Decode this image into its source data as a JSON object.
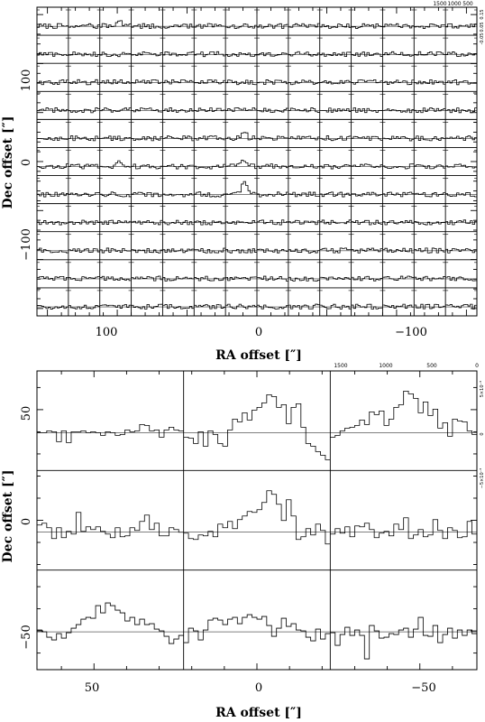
{
  "chart_data": [
    {
      "type": "line",
      "subtype": "spectral-map-grid",
      "title": "",
      "xlabel": "RA offset  [″]",
      "ylabel": "Dec offset  [″]",
      "x_ticks": [
        "100",
        "0",
        "−100"
      ],
      "y_ticks": [
        "100",
        "0",
        "−100"
      ],
      "x_range": [
        157.5,
        -157.5
      ],
      "y_range": [
        -157.5,
        157.5
      ],
      "grid_cols": 14,
      "grid_rows": 11,
      "top_axis_ticks": [
        "1500",
        "1000",
        "500"
      ],
      "right_axis_ticks": [
        "-0.05",
        "0.05",
        "0.15"
      ],
      "baseline_fraction": 0.68,
      "strong_signal_positions": [
        {
          "row": 6,
          "col": 6,
          "peak": 2.6
        },
        {
          "row": 5,
          "col": 6,
          "peak": 1.5
        },
        {
          "row": 4,
          "col": 6,
          "peak": 1.3
        },
        {
          "row": 5,
          "col": 2,
          "peak": 1.2
        },
        {
          "row": 0,
          "col": 2,
          "peak": 1.3
        }
      ]
    },
    {
      "type": "line",
      "subtype": "spectral-map-grid",
      "title": "",
      "xlabel": "RA offset  [″]",
      "ylabel": "Dec offset  [″]",
      "x_ticks": [
        "50",
        "0",
        "−50"
      ],
      "y_ticks": [
        "50",
        "0",
        "−50"
      ],
      "x_range": [
        67.5,
        -67.5
      ],
      "y_range": [
        -67.5,
        67.5
      ],
      "grid_cols": 3,
      "grid_rows": 3,
      "top_axis_ticks": [
        "1500",
        "1000",
        "500",
        "0"
      ],
      "right_axis_ticks": [
        "5×10⁻³",
        "0",
        "−5×10⁻³"
      ],
      "panels": [
        {
          "row": 0,
          "col": 0,
          "values": [
            0,
            0,
            0.2,
            0.1,
            -1,
            0.2,
            -1.1,
            0.1,
            0.1,
            0.2,
            0,
            0.1,
            0,
            -0.3,
            0.1,
            0,
            -0.3,
            -0.2,
            0.3,
            0.1,
            0.2,
            0.9,
            0.8,
            0.2,
            0.3,
            -0.5,
            0.3,
            0.6,
            0.3,
            0.2
          ]
        },
        {
          "row": 0,
          "col": 1,
          "values": [
            -0.5,
            -0.6,
            -1.2,
            0.1,
            -1.5,
            0.2,
            -0.2,
            -1.2,
            -1.5,
            0.3,
            1.5,
            1.2,
            2.2,
            1.4,
            2.5,
            2.8,
            3.3,
            4.2,
            4.0,
            2.8,
            3.1,
            1.0,
            2.8,
            3.2,
            0.6,
            -1.2,
            -1.5,
            -2.1,
            -2.5,
            -3.0
          ]
        },
        {
          "row": 0,
          "col": 2,
          "values": [
            -0.5,
            -0.3,
            0.2,
            0.5,
            0.6,
            0.8,
            1.4,
            0.9,
            2.3,
            2.0,
            2.4,
            0.8,
            1.5,
            2.8,
            3.1,
            4.6,
            4.3,
            3.8,
            2.2,
            3.4,
            1.9,
            2.6,
            0.5,
            1.1,
            -0.4,
            1.5,
            1.3,
            1.2,
            0.2,
            -0.2
          ]
        },
        {
          "row": 1,
          "col": 0,
          "values": [
            0.8,
            1.0,
            0.5,
            -0.7,
            0.5,
            -0.6,
            0.1,
            -0.2,
            2.2,
            0.1,
            0.6,
            0.3,
            0.6,
            0.1,
            -0.2,
            -0.6,
            0.5,
            -0.5,
            -0.4,
            0.5,
            0.2,
            1.2,
            1.9,
            0.3,
            1.0,
            -0.4,
            -0.4,
            0.5,
            0.3,
            0
          ]
        },
        {
          "row": 1,
          "col": 1,
          "values": [
            -0.1,
            -0.7,
            -0.8,
            -0.3,
            -0.4,
            0.1,
            -0.5,
            0.9,
            0.5,
            1.2,
            0.4,
            1.4,
            1.8,
            2.3,
            2.2,
            2.5,
            3.3,
            4.6,
            4.2,
            3.1,
            1.3,
            3.6,
            1.8,
            -0.8,
            -0.5,
            0.4,
            -0.3,
            0.9,
            0.2,
            -1.3
          ]
        },
        {
          "row": 1,
          "col": 2,
          "values": [
            -0.2,
            0.4,
            -0.1,
            0.6,
            -0.5,
            0.7,
            0.6,
            1.0,
            0.3,
            -0.6,
            -0.1,
            0.1,
            -0.4,
            0.9,
            0.3,
            1.6,
            -0.7,
            -0.3,
            0.3,
            -0.5,
            -0.3,
            1.4,
            0.2,
            -0.7,
            0.5,
            0.2,
            -0.6,
            -0.5,
            1.2,
            -0.2
          ]
        },
        {
          "row": 2,
          "col": 0,
          "values": [
            0.2,
            0,
            -0.6,
            -0.9,
            -0.2,
            -0.7,
            -0.1,
            0.4,
            0.8,
            1.4,
            1.6,
            1.5,
            2.9,
            2.1,
            3.2,
            2.9,
            2.4,
            2.1,
            1.2,
            1.6,
            0.8,
            1.4,
            0.8,
            0.9,
            0.3,
            0.1,
            -0.5,
            -1.3,
            -0.8,
            -0.4
          ]
        },
        {
          "row": 2,
          "col": 1,
          "values": [
            -1.2,
            0.4,
            0.1,
            -0.9,
            0.2,
            1.3,
            1.5,
            1.3,
            0.8,
            1.4,
            1.6,
            0.9,
            1.6,
            1.9,
            1.6,
            1.4,
            1.7,
            0.7,
            -0.5,
            0.4,
            1.5,
            0.6,
            0.9,
            0.2,
            0.1,
            -0.6,
            -1.0,
            0.3,
            -0.8,
            -0.2
          ]
        },
        {
          "row": 2,
          "col": 2,
          "values": [
            -0.1,
            -1.5,
            -0.3,
            0.5,
            -0.4,
            0.2,
            -0.4,
            -3.0,
            0.7,
            0.1,
            -0.7,
            -0.6,
            -0.2,
            -0.3,
            0.2,
            0.4,
            -0.6,
            0.3,
            1.6,
            -0.4,
            -0.5,
            0.7,
            -1.2,
            -0.3,
            0.4,
            -0.7,
            0.2,
            -0.4,
            0.2,
            -0.2
          ]
        }
      ]
    }
  ]
}
